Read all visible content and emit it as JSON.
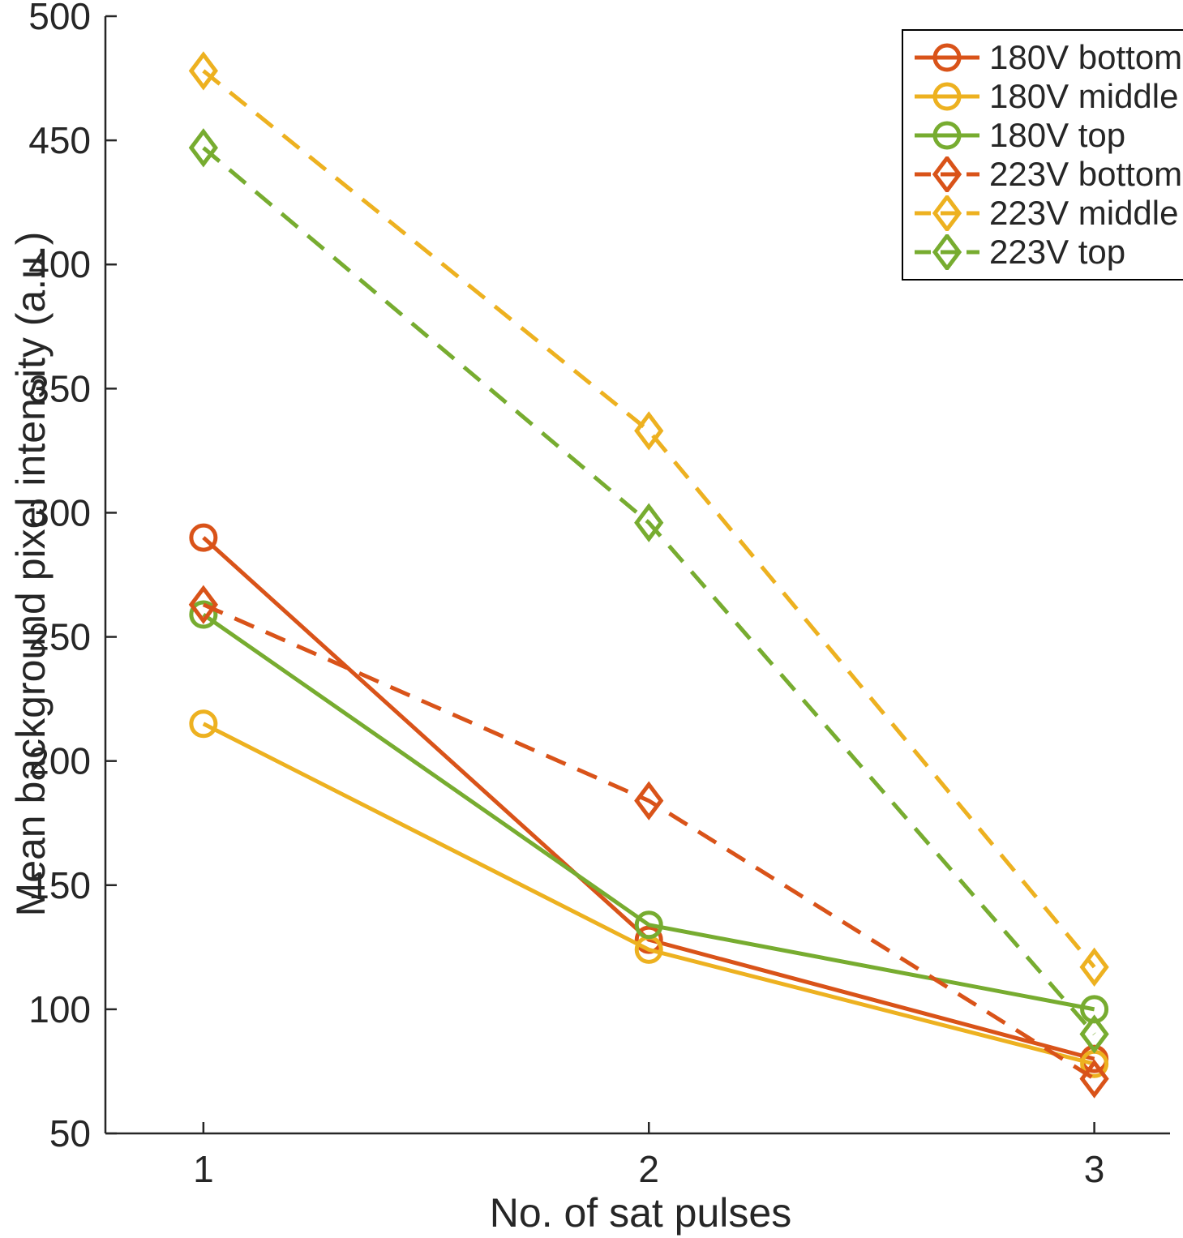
{
  "chart_data": {
    "type": "line",
    "title": "",
    "xlabel": "No. of sat pulses",
    "ylabel": "Mean background pixel intensity (a.u.)",
    "x": [
      1,
      2,
      3
    ],
    "xticks": [
      1,
      2,
      3
    ],
    "yticks": [
      50,
      100,
      150,
      200,
      250,
      300,
      350,
      400,
      450,
      500
    ],
    "xlim": [
      0.78,
      3.17
    ],
    "ylim": [
      50,
      500
    ],
    "grid": false,
    "legend_position": "top-right",
    "axis_color": "#262626",
    "background_color": "#ffffff",
    "series": [
      {
        "name": "180V bottom",
        "color": "#D95319",
        "line": "solid",
        "marker": "circle",
        "values": [
          290,
          128,
          80
        ]
      },
      {
        "name": "180V middle",
        "color": "#EDB120",
        "line": "solid",
        "marker": "circle",
        "values": [
          215,
          124,
          78
        ]
      },
      {
        "name": "180V top",
        "color": "#77AC30",
        "line": "solid",
        "marker": "circle",
        "values": [
          259,
          134,
          100
        ]
      },
      {
        "name": "223V bottom",
        "color": "#D95319",
        "line": "dashed",
        "marker": "diamond",
        "values": [
          263,
          184,
          72
        ]
      },
      {
        "name": "223V middle",
        "color": "#EDB120",
        "line": "dashed",
        "marker": "diamond",
        "values": [
          478,
          333,
          117
        ]
      },
      {
        "name": "223V top",
        "color": "#77AC30",
        "line": "dashed",
        "marker": "diamond",
        "values": [
          447,
          296,
          90
        ]
      }
    ]
  }
}
